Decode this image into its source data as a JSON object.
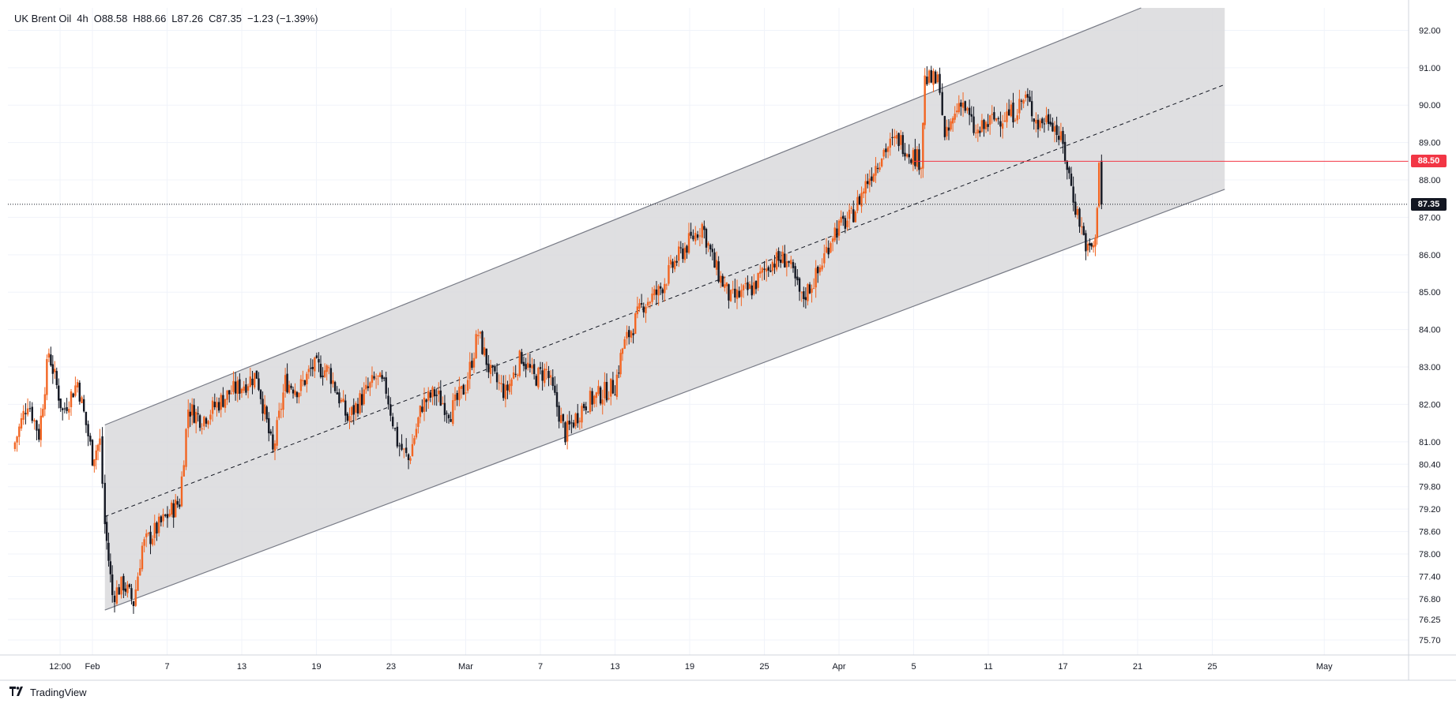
{
  "legend": {
    "symbol": "UK Brent Oil",
    "interval": "4h",
    "open": "O88.58",
    "high": "H88.66",
    "low": "L87.26",
    "close": "C87.35",
    "change": "−1.23 (−1.39%)"
  },
  "brand": {
    "logo_icon": "tradingview-logo-icon",
    "name": "TradingView"
  },
  "colors": {
    "up": "#f26522",
    "down": "#131722",
    "channel_fill": "#d9d9dc",
    "channel_line": "#787b86",
    "level_line": "#f23645",
    "grid": "#f0f3fa"
  },
  "chart_data": {
    "type": "candlestick",
    "ylim": [
      75.3,
      92.6
    ],
    "y_ticks": [
      "92.00",
      "91.00",
      "90.00",
      "89.00",
      "88.00",
      "87.00",
      "86.00",
      "85.00",
      "84.00",
      "83.00",
      "82.00",
      "81.00",
      "80.40",
      "79.80",
      "79.20",
      "78.60",
      "78.00",
      "77.40",
      "76.80",
      "76.25",
      "75.70"
    ],
    "y_tick_values": [
      92.0,
      91.0,
      90.0,
      89.0,
      88.0,
      87.0,
      86.0,
      85.0,
      84.0,
      83.0,
      82.0,
      81.0,
      80.4,
      79.8,
      79.2,
      78.6,
      78.0,
      77.4,
      76.8,
      76.25,
      75.7
    ],
    "x_ticks": [
      {
        "label": "12:00",
        "day": -2.6
      },
      {
        "label": "Feb",
        "day": 0
      },
      {
        "label": "7",
        "day": 6
      },
      {
        "label": "13",
        "day": 12
      },
      {
        "label": "19",
        "day": 18
      },
      {
        "label": "23",
        "day": 24
      },
      {
        "label": "Mar",
        "day": 30
      },
      {
        "label": "7",
        "day": 36
      },
      {
        "label": "13",
        "day": 42
      },
      {
        "label": "19",
        "day": 48
      },
      {
        "label": "25",
        "day": 54
      },
      {
        "label": "Apr",
        "day": 60
      },
      {
        "label": "5",
        "day": 66
      },
      {
        "label": "11",
        "day": 72
      },
      {
        "label": "17",
        "day": 78
      },
      {
        "label": "21",
        "day": 84
      },
      {
        "label": "25",
        "day": 90
      },
      {
        "label": "May",
        "day": 99
      }
    ],
    "candle_path": [
      [
        -6.4,
        80.8
      ],
      [
        -5.2,
        82.1
      ],
      [
        -4.3,
        81.2
      ],
      [
        -3.5,
        83.4
      ],
      [
        -2.4,
        81.8
      ],
      [
        -1.2,
        82.6
      ],
      [
        0.0,
        80.6
      ],
      [
        0.6,
        81.0
      ],
      [
        1.0,
        78.8
      ],
      [
        1.6,
        76.9
      ],
      [
        2.5,
        77.2
      ],
      [
        3.3,
        76.7
      ],
      [
        4.0,
        78.2
      ],
      [
        5.0,
        78.6
      ],
      [
        6.2,
        79.1
      ],
      [
        7.0,
        79.4
      ],
      [
        7.7,
        81.9
      ],
      [
        8.8,
        81.6
      ],
      [
        10.0,
        82.0
      ],
      [
        11.0,
        82.3
      ],
      [
        12.0,
        82.5
      ],
      [
        13.2,
        82.8
      ],
      [
        14.5,
        80.7
      ],
      [
        15.5,
        82.6
      ],
      [
        16.6,
        82.4
      ],
      [
        17.7,
        83.0
      ],
      [
        19.0,
        82.9
      ],
      [
        20.5,
        81.6
      ],
      [
        21.5,
        82.1
      ],
      [
        22.8,
        82.7
      ],
      [
        23.6,
        82.4
      ],
      [
        24.5,
        81.0
      ],
      [
        25.4,
        80.5
      ],
      [
        26.5,
        82.0
      ],
      [
        27.5,
        82.3
      ],
      [
        28.8,
        81.8
      ],
      [
        30.0,
        82.5
      ],
      [
        31.0,
        83.9
      ],
      [
        32.0,
        82.8
      ],
      [
        33.2,
        82.3
      ],
      [
        34.5,
        83.3
      ],
      [
        35.5,
        82.7
      ],
      [
        36.5,
        82.9
      ],
      [
        38.0,
        81.2
      ],
      [
        39.5,
        82.0
      ],
      [
        41.0,
        82.3
      ],
      [
        42.0,
        82.5
      ],
      [
        42.6,
        83.5
      ],
      [
        43.3,
        84.0
      ],
      [
        44.3,
        84.7
      ],
      [
        45.5,
        85.0
      ],
      [
        46.8,
        85.8
      ],
      [
        48.1,
        86.4
      ],
      [
        49.0,
        86.8
      ],
      [
        50.0,
        85.7
      ],
      [
        51.3,
        84.8
      ],
      [
        53.0,
        85.1
      ],
      [
        54.5,
        85.8
      ],
      [
        55.8,
        85.9
      ],
      [
        57.0,
        84.8
      ],
      [
        58.3,
        85.5
      ],
      [
        59.5,
        86.6
      ],
      [
        61.0,
        87.0
      ],
      [
        62.3,
        88.0
      ],
      [
        63.6,
        88.8
      ],
      [
        64.8,
        89.1
      ],
      [
        65.8,
        88.7
      ],
      [
        66.6,
        88.5
      ],
      [
        66.9,
        90.7
      ],
      [
        68.1,
        90.6
      ],
      [
        68.5,
        89.0
      ],
      [
        69.8,
        90.2
      ],
      [
        71.0,
        89.2
      ],
      [
        72.3,
        89.6
      ],
      [
        74.0,
        89.8
      ],
      [
        75.0,
        90.2
      ],
      [
        76.0,
        89.5
      ],
      [
        77.0,
        89.7
      ],
      [
        78.0,
        88.9
      ],
      [
        79.0,
        87.3
      ],
      [
        80.0,
        86.1
      ],
      [
        80.6,
        86.3
      ],
      [
        80.9,
        88.6
      ],
      [
        81.1,
        87.35
      ]
    ],
    "channel": {
      "lower": [
        [
          1.0,
          76.5
        ],
        [
          91.0,
          87.75
        ]
      ],
      "upper": [
        [
          1.0,
          81.45
        ],
        [
          91.0,
          93.5
        ]
      ],
      "mid": [
        [
          1.0,
          79.0
        ],
        [
          91.0,
          90.55
        ]
      ]
    },
    "level_line": {
      "value": 88.5,
      "start_day": 66.0,
      "label": "88.50"
    },
    "last_price": {
      "value": 87.35,
      "label": "87.35"
    }
  }
}
